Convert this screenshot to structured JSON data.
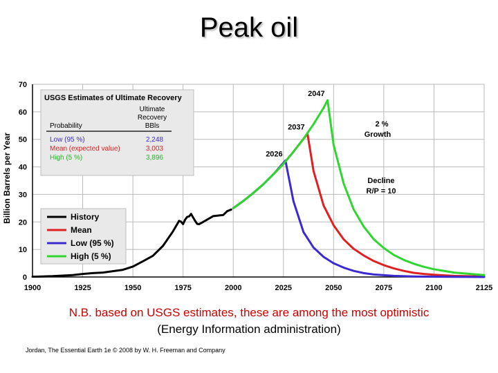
{
  "slide": {
    "title": "Peak oil",
    "caption_line1": "N.B. based on USGS estimates, these are among the most optimistic",
    "caption_line2": "(Energy Information administration)",
    "credit": "Jordan, The Essential Earth 1e © 2008 by W. H. Freeman and Company"
  },
  "colors": {
    "history": "#000000",
    "mean": "#e02020",
    "low": "#3a2ad0",
    "high": "#2fd62f",
    "grid": "#b9b9b9",
    "box_bg": "#e9e9e9",
    "caption_red": "#cc0000"
  },
  "chart_data": {
    "type": "line",
    "ylabel": "Billion Barrels per Year",
    "xlabel": "",
    "xlim": [
      1900,
      2125
    ],
    "ylim": [
      0,
      70
    ],
    "grid": true,
    "x_ticks": [
      1900,
      1925,
      1950,
      1975,
      2000,
      2025,
      2050,
      2075,
      2100,
      2125
    ],
    "y_ticks": [
      0,
      10,
      20,
      30,
      40,
      50,
      60,
      70
    ],
    "legend": [
      "History",
      "Mean",
      "Low (95 %)",
      "High (5 %)"
    ],
    "series": [
      {
        "name": "History",
        "key": "history",
        "x": [
          1900,
          1905,
          1910,
          1915,
          1920,
          1925,
          1930,
          1935,
          1940,
          1945,
          1950,
          1955,
          1960,
          1965,
          1970,
          1973,
          1974,
          1975,
          1976,
          1977,
          1978,
          1979,
          1980,
          1981,
          1982,
          1983,
          1985,
          1990,
          1995,
          1997,
          1999
        ],
        "y": [
          0.1,
          0.2,
          0.3,
          0.5,
          0.7,
          1.1,
          1.4,
          1.6,
          2.1,
          2.6,
          3.8,
          5.7,
          7.7,
          11.3,
          16.6,
          20.4,
          20.1,
          19.2,
          20.8,
          21.8,
          22.0,
          22.9,
          21.6,
          20.4,
          19.3,
          19.2,
          20.0,
          22.1,
          22.5,
          23.9,
          24.5
        ]
      },
      {
        "name": "Mean",
        "key": "mean",
        "x": [
          2000,
          2005,
          2010,
          2015,
          2020,
          2025,
          2030,
          2035,
          2037,
          2040,
          2045,
          2050,
          2055,
          2060,
          2065,
          2070,
          2075,
          2080,
          2085,
          2090,
          2095,
          2100,
          2110,
          2125
        ],
        "y": [
          25.0,
          27.6,
          30.5,
          33.7,
          37.3,
          41.1,
          45.5,
          50.2,
          52.0,
          38.5,
          26.0,
          18.8,
          13.7,
          10.2,
          7.8,
          5.8,
          4.3,
          3.1,
          2.2,
          1.5,
          1.1,
          0.8,
          0.4,
          0.2
        ]
      },
      {
        "name": "Low (95 %)",
        "key": "low",
        "x": [
          2000,
          2005,
          2010,
          2015,
          2020,
          2026,
          2030,
          2035,
          2040,
          2045,
          2050,
          2055,
          2060,
          2065,
          2070,
          2080,
          2090,
          2100,
          2125
        ],
        "y": [
          25.0,
          27.6,
          30.5,
          33.7,
          37.3,
          42.3,
          27.5,
          16.3,
          10.7,
          7.3,
          5.0,
          3.4,
          2.2,
          1.4,
          0.9,
          0.4,
          0.2,
          0.1,
          0.0
        ]
      },
      {
        "name": "High (5 %)",
        "key": "high",
        "x": [
          2000,
          2005,
          2010,
          2015,
          2020,
          2025,
          2030,
          2035,
          2040,
          2045,
          2047,
          2050,
          2055,
          2060,
          2065,
          2070,
          2075,
          2080,
          2085,
          2090,
          2095,
          2100,
          2110,
          2125
        ],
        "y": [
          25.0,
          27.6,
          30.5,
          33.7,
          37.3,
          41.1,
          45.5,
          50.2,
          55.5,
          61.4,
          64.2,
          48.0,
          34.0,
          24.5,
          18.3,
          13.7,
          10.5,
          8.0,
          6.2,
          4.8,
          3.7,
          2.8,
          1.6,
          0.7
        ]
      }
    ],
    "peak_labels": [
      {
        "text": "2026",
        "x": 2026,
        "y": 42.3
      },
      {
        "text": "2037",
        "x": 2037,
        "y": 52.0
      },
      {
        "text": "2047",
        "x": 2047,
        "y": 64.2
      }
    ],
    "annotations": {
      "growth_line1": "2 %",
      "growth_line2": "Growth",
      "decline_line1": "Decline",
      "decline_line2": "R/P = 10"
    },
    "usgs_table": {
      "title": "USGS Estimates of Ultimate Recovery",
      "col1_header": "Probability",
      "col2_header_line1": "Ultimate",
      "col2_header_line2": "Recovery",
      "col2_header_line3": "BBls",
      "rows": [
        {
          "label": "Low (95 %)",
          "value": "2,248",
          "key": "low"
        },
        {
          "label": "Mean (expected value)",
          "value": "3,003",
          "key": "mean"
        },
        {
          "label": "High (5 %)",
          "value": "3,896",
          "key": "high"
        }
      ]
    }
  }
}
